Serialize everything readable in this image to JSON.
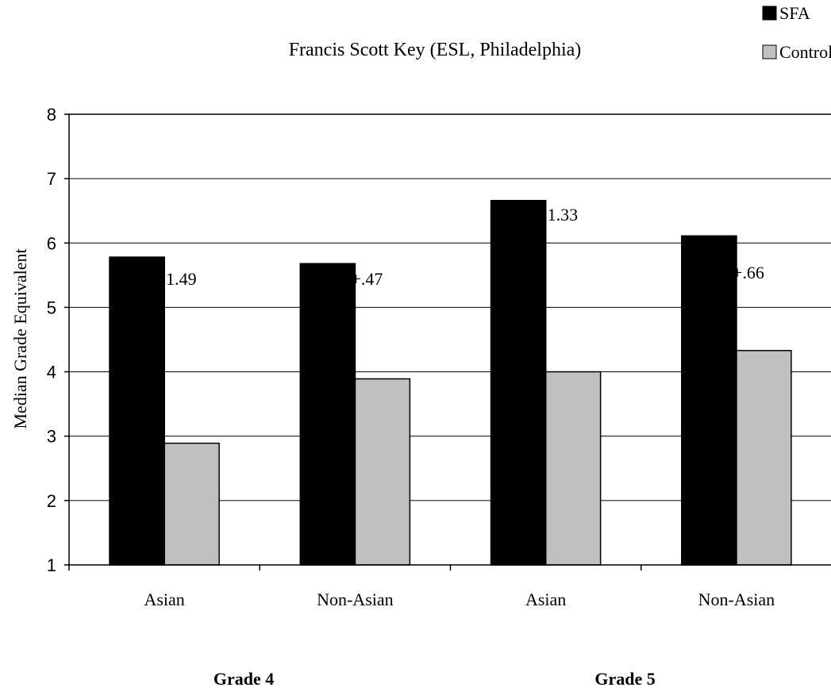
{
  "chart_data": {
    "type": "bar",
    "title": "Francis Scott Key (ESL, Philadelphia)",
    "ylabel": "Median Grade Equivalent",
    "xlabel": "",
    "ylim": [
      1,
      8
    ],
    "yticks": [
      "1",
      "2",
      "3",
      "4",
      "5",
      "6",
      "7",
      "8"
    ],
    "grid": true,
    "legend_position": "top-right",
    "categories": [
      "Asian",
      "Non-Asian",
      "Asian",
      "Non-Asian"
    ],
    "groups": [
      "Grade 4",
      "Grade 5"
    ],
    "series": [
      {
        "name": "SFA",
        "values": [
          5.78,
          5.68,
          6.66,
          6.11
        ],
        "color": "#000000"
      },
      {
        "name": "Control",
        "values": [
          2.89,
          3.89,
          4.0,
          4.33
        ],
        "color": "#c0c0c0"
      }
    ],
    "annotations": [
      "ES=+1.49",
      "ES=+.47",
      "ES=+1.33",
      "ES=+.66"
    ],
    "annotation_visible": [
      "E  .49",
      "E  .47",
      ".33",
      ".66"
    ]
  }
}
